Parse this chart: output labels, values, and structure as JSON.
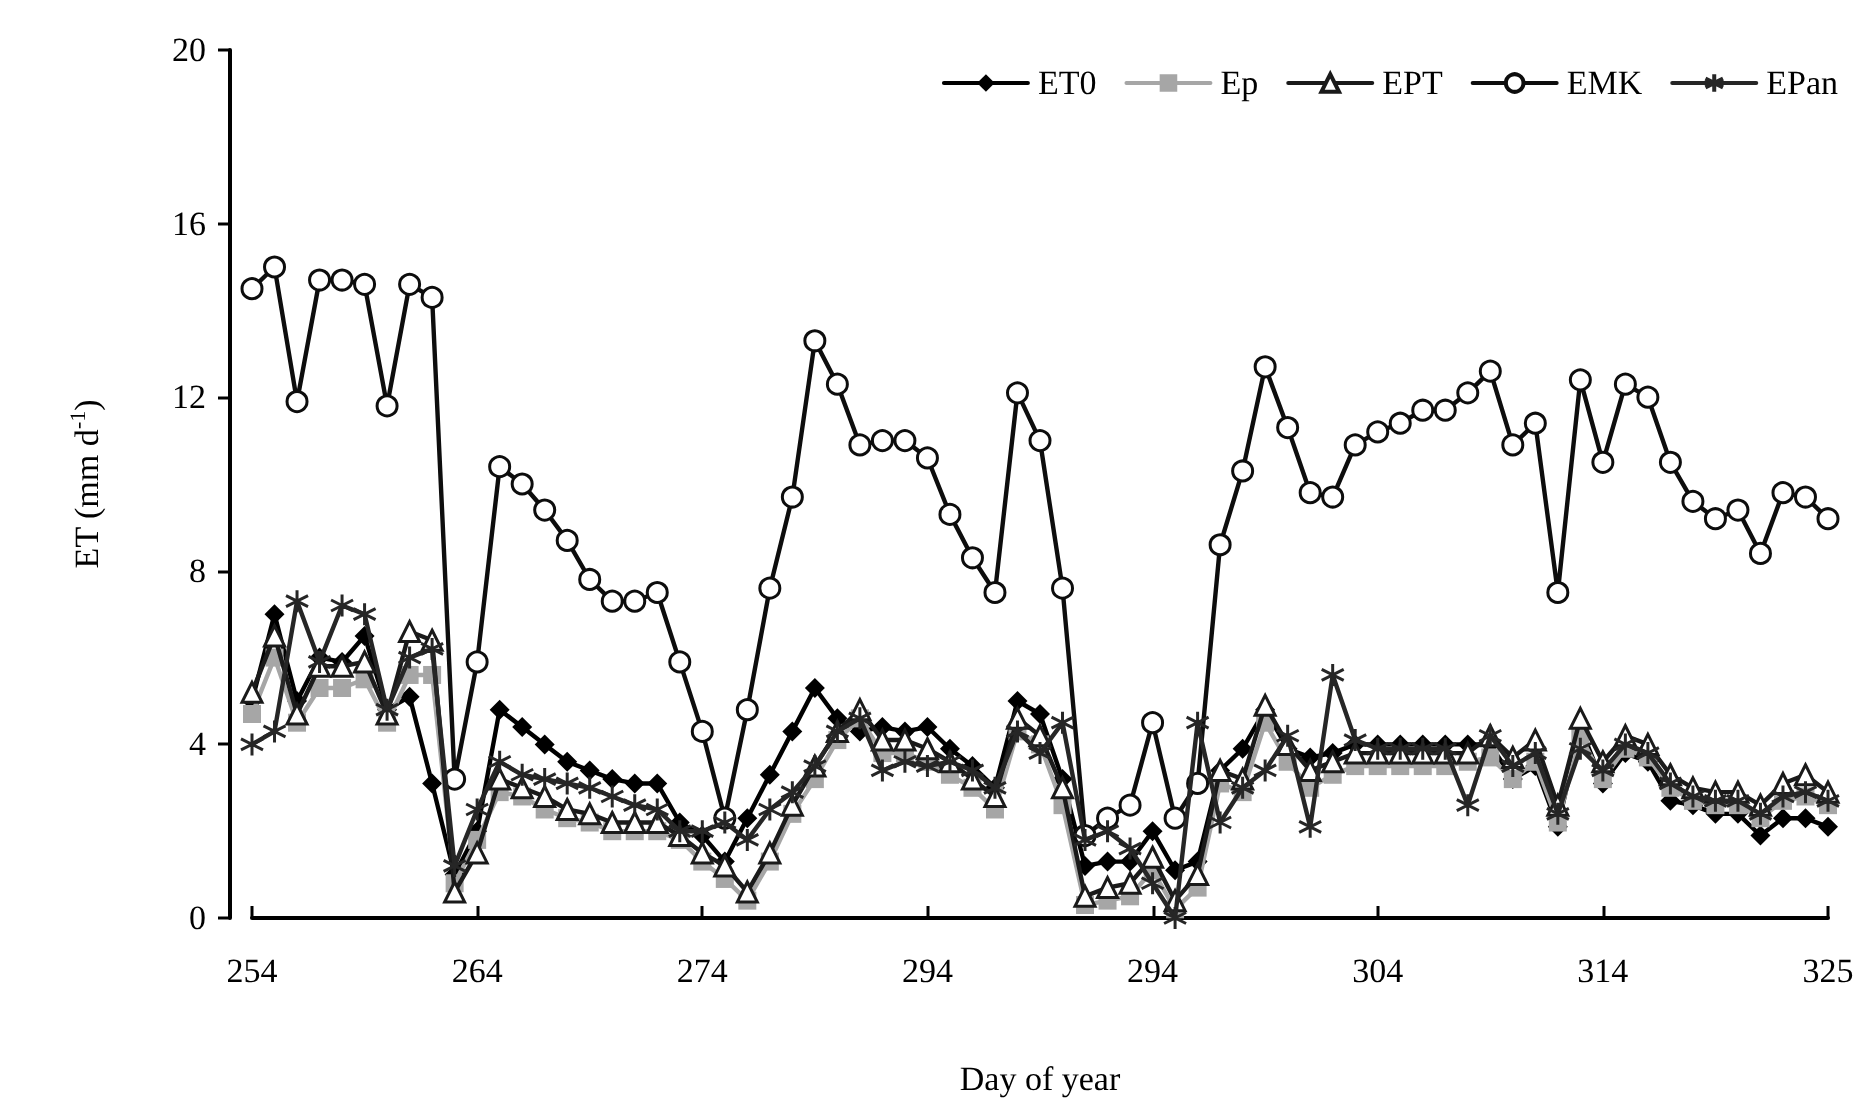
{
  "chart_data": {
    "type": "line",
    "xlabel": "Day of year",
    "ylabel": "ET (mm d$^{-1}$)",
    "categories": [
      "254",
      null,
      null,
      null,
      null,
      null,
      null,
      null,
      null,
      null,
      "264",
      null,
      null,
      null,
      null,
      null,
      null,
      null,
      null,
      null,
      "274",
      null,
      null,
      null,
      null,
      null,
      null,
      null,
      null,
      null,
      "294",
      null,
      null,
      null,
      null,
      null,
      null,
      null,
      null,
      null,
      "294",
      null,
      null,
      null,
      null,
      null,
      null,
      null,
      null,
      null,
      "304",
      null,
      null,
      null,
      null,
      null,
      null,
      null,
      null,
      null,
      "314",
      null,
      null,
      null,
      null,
      null,
      null,
      null,
      null,
      null,
      "325"
    ],
    "ylim": [
      0,
      20
    ],
    "yticks": [
      0,
      4,
      8,
      12,
      16,
      20
    ],
    "grid": false,
    "legend": "top right",
    "line_style": "solid",
    "series": [
      {
        "name": "ET0",
        "color": "#000000",
        "marker": "diamond",
        "values": [
          5.0,
          7.0,
          5.0,
          6.0,
          5.9,
          6.5,
          4.8,
          5.1,
          3.1,
          1.0,
          2.0,
          4.8,
          4.4,
          4.0,
          3.6,
          3.4,
          3.2,
          3.1,
          3.1,
          2.2,
          1.9,
          1.3,
          2.3,
          3.3,
          4.3,
          5.3,
          4.6,
          4.3,
          4.4,
          4.3,
          4.4,
          3.9,
          3.5,
          3.0,
          5.0,
          4.7,
          3.2,
          1.2,
          1.3,
          1.3,
          2.0,
          1.1,
          1.3,
          3.4,
          3.9,
          4.8,
          3.9,
          3.7,
          3.8,
          4.0,
          4.0,
          4.0,
          4.0,
          4.0,
          4.0,
          4.0,
          3.2,
          3.5,
          2.1,
          4.4,
          3.1,
          3.8,
          3.6,
          2.7,
          2.6,
          2.4,
          2.4,
          1.9,
          2.3,
          2.3,
          2.1
        ]
      },
      {
        "name": "Ep",
        "color": "#a6a6a6",
        "marker": "square",
        "values": [
          4.7,
          6.0,
          4.5,
          5.3,
          5.3,
          5.5,
          4.5,
          5.6,
          5.6,
          0.8,
          1.8,
          2.9,
          2.8,
          2.5,
          2.3,
          2.2,
          2.0,
          2.0,
          2.0,
          1.8,
          1.3,
          0.9,
          0.4,
          1.3,
          2.4,
          3.2,
          4.1,
          4.6,
          3.8,
          3.8,
          3.6,
          3.3,
          3.0,
          2.5,
          4.3,
          4.0,
          2.6,
          0.3,
          0.4,
          0.5,
          1.1,
          0.2,
          0.7,
          3.1,
          2.9,
          4.5,
          3.6,
          3.0,
          3.3,
          3.5,
          3.5,
          3.5,
          3.5,
          3.5,
          3.6,
          3.7,
          3.2,
          3.6,
          2.2,
          4.2,
          3.2,
          3.9,
          3.7,
          3.0,
          2.7,
          2.6,
          2.6,
          2.3,
          2.7,
          2.8,
          2.6
        ]
      },
      {
        "name": "EPT",
        "color": "#1a1a1a",
        "marker": "triangle",
        "values": [
          5.2,
          6.5,
          4.7,
          5.8,
          5.8,
          5.9,
          4.7,
          6.6,
          6.4,
          0.6,
          1.5,
          3.2,
          3.0,
          2.8,
          2.5,
          2.4,
          2.2,
          2.2,
          2.2,
          1.9,
          1.5,
          1.2,
          0.6,
          1.5,
          2.6,
          3.5,
          4.3,
          4.8,
          4.1,
          4.1,
          3.9,
          3.6,
          3.2,
          2.8,
          4.6,
          4.2,
          3.0,
          0.5,
          0.7,
          0.8,
          1.4,
          0.4,
          1.0,
          3.4,
          3.2,
          4.9,
          4.0,
          3.4,
          3.6,
          3.8,
          3.8,
          3.8,
          3.8,
          3.8,
          3.8,
          4.2,
          3.7,
          4.1,
          2.6,
          4.6,
          3.6,
          4.2,
          4.0,
          3.3,
          3.0,
          2.9,
          2.9,
          2.6,
          3.1,
          3.3,
          2.9
        ]
      },
      {
        "name": "EMK",
        "color": "#0d0d0d",
        "marker": "circle",
        "values": [
          14.5,
          15.0,
          11.9,
          14.7,
          14.7,
          14.6,
          11.8,
          14.6,
          14.3,
          3.2,
          5.9,
          10.4,
          10.0,
          9.4,
          8.7,
          7.8,
          7.3,
          7.3,
          7.5,
          5.9,
          4.3,
          2.3,
          4.8,
          7.6,
          9.7,
          13.3,
          12.3,
          10.9,
          11.0,
          11.0,
          10.6,
          9.3,
          8.3,
          7.5,
          12.1,
          11.0,
          7.6,
          1.9,
          2.3,
          2.6,
          4.5,
          2.3,
          3.1,
          8.6,
          10.3,
          12.7,
          11.3,
          9.8,
          9.7,
          10.9,
          11.2,
          11.4,
          11.7,
          11.7,
          12.1,
          12.6,
          10.9,
          11.4,
          7.5,
          12.4,
          10.5,
          12.3,
          12.0,
          10.5,
          9.6,
          9.2,
          9.4,
          8.4,
          9.8,
          9.7,
          9.2
        ]
      },
      {
        "name": "EPan",
        "color": "#262626",
        "marker": "cross",
        "values": [
          4.0,
          4.3,
          7.3,
          5.9,
          7.2,
          7.0,
          4.8,
          6.0,
          6.2,
          1.2,
          2.5,
          3.6,
          3.3,
          3.2,
          3.1,
          3.0,
          2.8,
          2.6,
          2.5,
          2.0,
          2.0,
          2.2,
          1.8,
          2.5,
          2.9,
          3.5,
          4.3,
          4.6,
          3.4,
          3.6,
          3.5,
          3.6,
          3.4,
          3.0,
          4.3,
          3.8,
          4.5,
          1.8,
          2.0,
          1.6,
          0.8,
          0.0,
          4.5,
          2.2,
          3.0,
          3.4,
          4.2,
          2.1,
          5.6,
          4.1,
          3.9,
          3.9,
          3.9,
          3.9,
          2.6,
          4.2,
          3.5,
          3.8,
          2.4,
          3.9,
          3.4,
          4.0,
          3.8,
          3.1,
          2.8,
          2.7,
          2.7,
          2.4,
          2.8,
          2.9,
          2.7
        ]
      }
    ]
  }
}
